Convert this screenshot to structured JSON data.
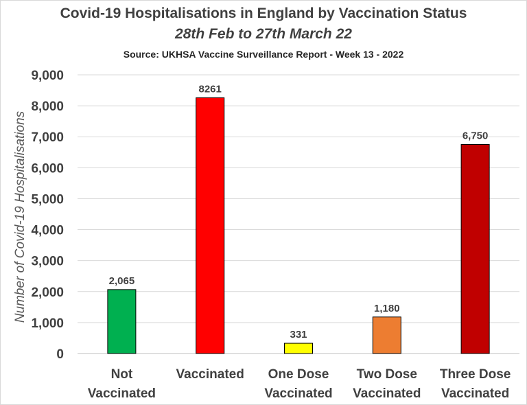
{
  "chart_data": {
    "type": "bar",
    "title": "Covid-19 Hospitalisations in England by Vaccination Status",
    "subtitle": "28th Feb to 27th March 22",
    "source": "Source: UKHSA Vaccine Surveillance Report - Week 13 - 2022",
    "xlabel": "",
    "ylabel": "Number of Covid-19 Hospitalisations",
    "ylim": [
      0,
      9000
    ],
    "yticks": [
      0,
      1000,
      2000,
      3000,
      4000,
      5000,
      6000,
      7000,
      8000,
      9000
    ],
    "ytick_labels": [
      "0",
      "1,000",
      "2,000",
      "3,000",
      "4,000",
      "5,000",
      "6,000",
      "7,000",
      "8,000",
      "9,000"
    ],
    "grid": true,
    "categories": [
      [
        "Not",
        "Vaccinated"
      ],
      [
        "Vaccinated"
      ],
      [
        "One Dose",
        "Vaccinated"
      ],
      [
        "Two Dose",
        "Vaccinated"
      ],
      [
        "Three Dose",
        "Vaccinated"
      ]
    ],
    "values": [
      2065,
      8261,
      331,
      1180,
      6750
    ],
    "data_labels": [
      "2,065",
      "8261",
      "331",
      "1,180",
      "6,750"
    ],
    "colors": [
      "#00b050",
      "#ff0000",
      "#ffff00",
      "#ed7d31",
      "#c00000"
    ]
  }
}
